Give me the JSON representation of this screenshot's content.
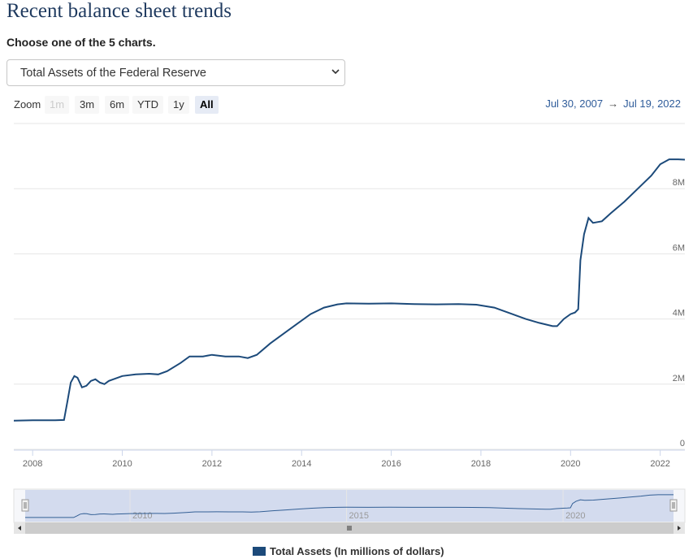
{
  "page": {
    "title": "Recent balance sheet trends",
    "subtitle": "Choose one of the 5 charts.",
    "select_value": "Total Assets of the Federal Reserve"
  },
  "zoom": {
    "label": "Zoom",
    "buttons": [
      "1m",
      "3m",
      "6m",
      "YTD",
      "1y",
      "All"
    ],
    "active": "All",
    "disabled": [
      "1m"
    ]
  },
  "range": {
    "from": "Jul 30, 2007",
    "arrow": "→",
    "to": "Jul 19, 2022"
  },
  "legend": {
    "label": "Total Assets (In millions of dollars)"
  },
  "colors": {
    "line": "#1c4a7a",
    "navigator_fill": "#ccd6eb"
  },
  "chart_data": {
    "type": "line",
    "title": "",
    "series": [
      {
        "name": "Total Assets (In millions of dollars)",
        "points": [
          [
            2007.58,
            0.88
          ],
          [
            2008.0,
            0.89
          ],
          [
            2008.5,
            0.89
          ],
          [
            2008.7,
            0.9
          ],
          [
            2008.78,
            1.5
          ],
          [
            2008.85,
            2.05
          ],
          [
            2008.93,
            2.25
          ],
          [
            2009.0,
            2.2
          ],
          [
            2009.1,
            1.9
          ],
          [
            2009.2,
            1.95
          ],
          [
            2009.3,
            2.1
          ],
          [
            2009.4,
            2.15
          ],
          [
            2009.5,
            2.05
          ],
          [
            2009.6,
            2.0
          ],
          [
            2009.7,
            2.1
          ],
          [
            2009.8,
            2.15
          ],
          [
            2010.0,
            2.25
          ],
          [
            2010.3,
            2.3
          ],
          [
            2010.6,
            2.32
          ],
          [
            2010.8,
            2.3
          ],
          [
            2011.0,
            2.4
          ],
          [
            2011.3,
            2.65
          ],
          [
            2011.5,
            2.85
          ],
          [
            2011.8,
            2.85
          ],
          [
            2012.0,
            2.9
          ],
          [
            2012.3,
            2.85
          ],
          [
            2012.6,
            2.85
          ],
          [
            2012.8,
            2.8
          ],
          [
            2013.0,
            2.9
          ],
          [
            2013.3,
            3.25
          ],
          [
            2013.6,
            3.55
          ],
          [
            2013.9,
            3.85
          ],
          [
            2014.2,
            4.15
          ],
          [
            2014.5,
            4.35
          ],
          [
            2014.8,
            4.45
          ],
          [
            2015.0,
            4.48
          ],
          [
            2015.5,
            4.47
          ],
          [
            2016.0,
            4.48
          ],
          [
            2016.5,
            4.46
          ],
          [
            2017.0,
            4.45
          ],
          [
            2017.5,
            4.46
          ],
          [
            2017.9,
            4.44
          ],
          [
            2018.3,
            4.35
          ],
          [
            2018.7,
            4.15
          ],
          [
            2019.0,
            4.0
          ],
          [
            2019.3,
            3.88
          ],
          [
            2019.6,
            3.78
          ],
          [
            2019.7,
            3.78
          ],
          [
            2019.85,
            4.0
          ],
          [
            2020.0,
            4.15
          ],
          [
            2020.1,
            4.2
          ],
          [
            2020.17,
            4.3
          ],
          [
            2020.22,
            5.8
          ],
          [
            2020.3,
            6.6
          ],
          [
            2020.4,
            7.1
          ],
          [
            2020.5,
            6.95
          ],
          [
            2020.7,
            7.0
          ],
          [
            2020.9,
            7.25
          ],
          [
            2021.2,
            7.6
          ],
          [
            2021.5,
            8.0
          ],
          [
            2021.8,
            8.4
          ],
          [
            2022.0,
            8.75
          ],
          [
            2022.2,
            8.9
          ],
          [
            2022.4,
            8.9
          ],
          [
            2022.55,
            8.89
          ]
        ]
      }
    ],
    "x_ticks": [
      "2008",
      "2010",
      "2012",
      "2014",
      "2016",
      "2018",
      "2020",
      "2022"
    ],
    "x_tick_values": [
      2008,
      2010,
      2012,
      2014,
      2016,
      2018,
      2020,
      2022
    ],
    "y_ticks": [
      "0",
      "2M",
      "4M",
      "6M",
      "8M"
    ],
    "y_tick_values": [
      0,
      2,
      4,
      6,
      8
    ],
    "xlim": [
      2007.58,
      2022.55
    ],
    "ylim": [
      0,
      10
    ],
    "grid": true,
    "navigator_ticks": [
      "2010",
      "2015",
      "2020"
    ],
    "navigator_tick_values": [
      2010,
      2015,
      2020
    ],
    "legend_position": "bottom"
  }
}
